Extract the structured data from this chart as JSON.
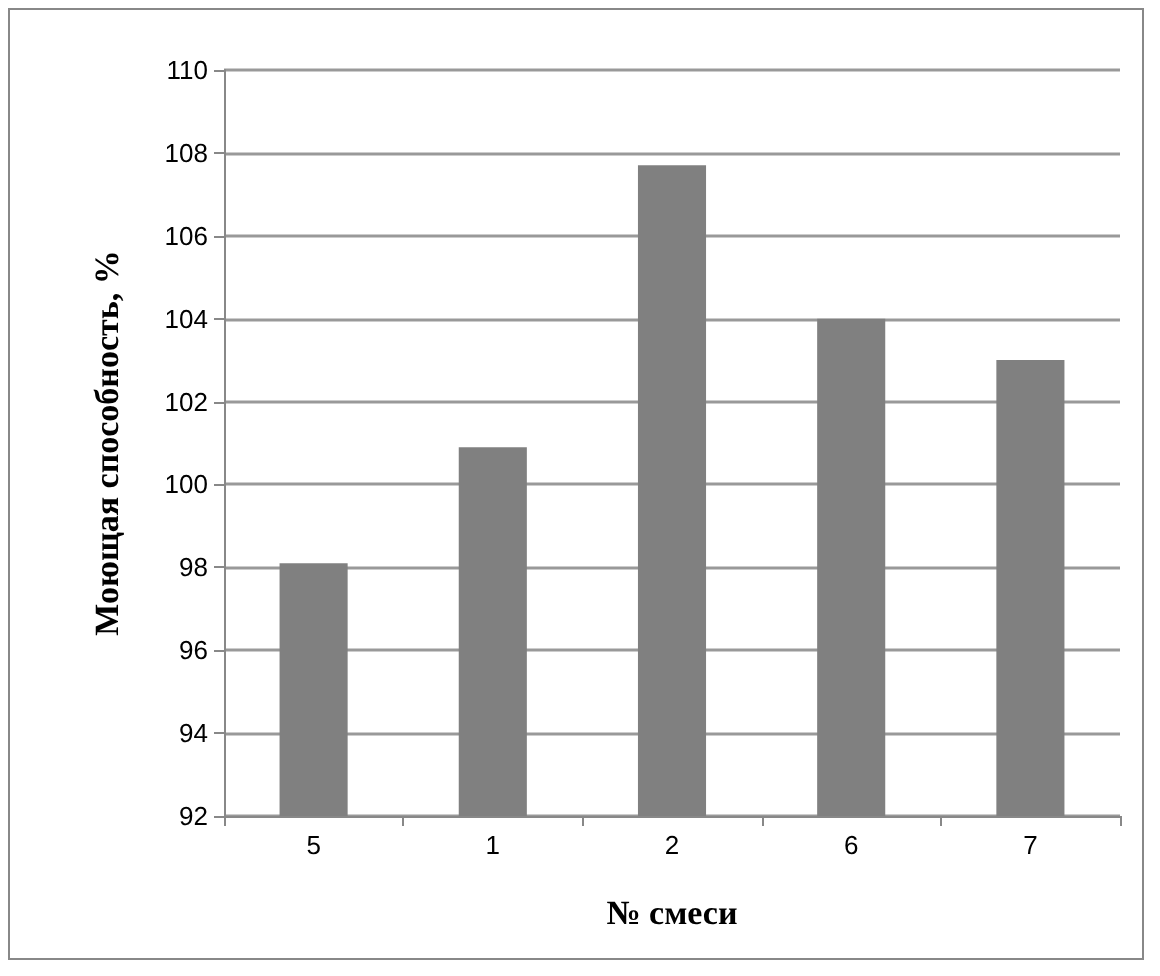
{
  "chart_data": {
    "type": "bar",
    "xlabel": "№ смеси",
    "ylabel": "Моющая способность, %",
    "categories": [
      "5",
      "1",
      "2",
      "6",
      "7"
    ],
    "values": [
      98.1,
      100.9,
      107.7,
      104.0,
      103.0
    ],
    "color": "#808080",
    "ylim": [
      92,
      110
    ],
    "yticks": [
      92,
      94,
      96,
      98,
      100,
      102,
      104,
      106,
      108,
      110
    ],
    "grid": "y"
  }
}
